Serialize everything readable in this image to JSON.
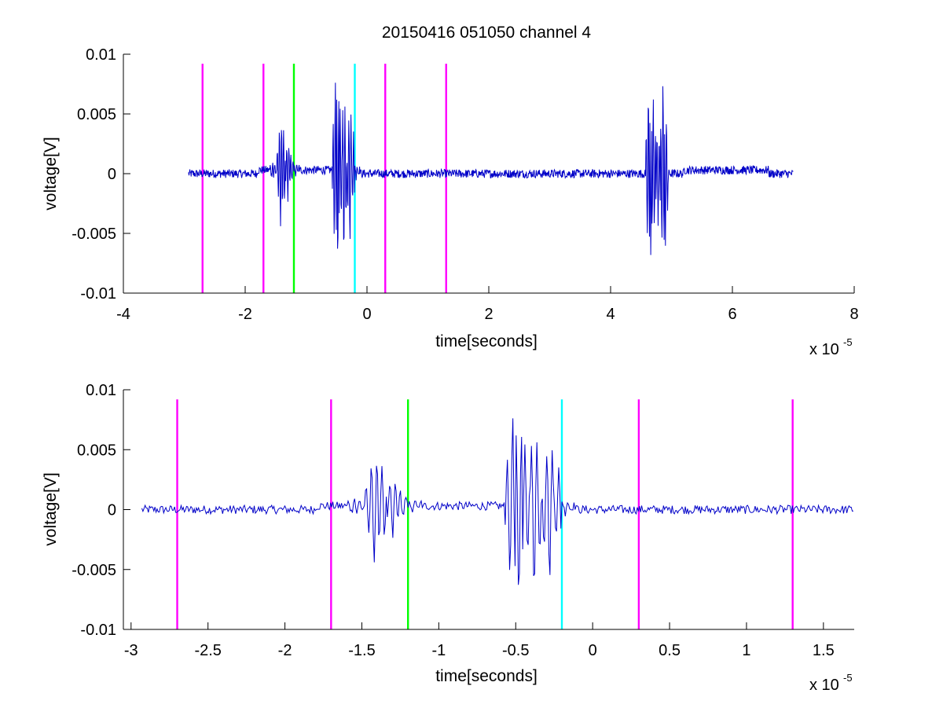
{
  "figure": {
    "title": "20150416 051050 channel 4"
  },
  "chart_data": [
    {
      "type": "line",
      "title": "20150416 051050 channel 4",
      "xlabel": "time[seconds]",
      "ylabel": "voltage[V]",
      "x_exponent_base": "x 10",
      "x_exponent_power": "-5",
      "xlim": [
        -4,
        8
      ],
      "ylim": [
        -0.01,
        0.01
      ],
      "xticks": [
        -4,
        -2,
        0,
        2,
        4,
        6,
        8
      ],
      "xtick_labels": [
        "-4",
        "-2",
        "0",
        "2",
        "4",
        "6",
        "8"
      ],
      "yticks": [
        -0.01,
        -0.005,
        0,
        0.005,
        0.01
      ],
      "ytick_labels": [
        "-0.01",
        "-0.005",
        "0",
        "0.005",
        "0.01"
      ],
      "grid": false,
      "series": [
        {
          "color": "#0000c8",
          "x_range": [
            -2.93,
            7.0
          ],
          "baseline_noise_amplitude": 0.0004,
          "bursts": [
            {
              "x": [
                -1.55,
                -1.42,
                -1.37,
                -1.3,
                -1.25,
                -1.15
              ],
              "y": [
                0.0008,
                -0.005,
                0.0038,
                -0.0028,
                0.0012,
                0.0006
              ]
            },
            {
              "x": [
                -0.52,
                -0.48,
                -0.44,
                -0.38,
                -0.28,
                -0.22,
                -0.18
              ],
              "y": [
                0.0083,
                -0.0089,
                0.0058,
                -0.0078,
                -0.0068,
                0.0032,
                -0.0006
              ]
            },
            {
              "x": [
                4.62,
                4.66,
                4.7,
                4.78,
                4.86,
                4.9
              ],
              "y": [
                0.0075,
                -0.0071,
                0.0068,
                -0.0045,
                0.0083,
                -0.0064
              ]
            }
          ],
          "offset_segments": [
            {
              "x": [
                -1.8,
                -0.1
              ],
              "y": 0.0003
            },
            {
              "x": [
                5.2,
                6.6
              ],
              "y": 0.0003
            }
          ]
        }
      ],
      "markers": [
        {
          "x": -2.7,
          "color": "#ff00ff"
        },
        {
          "x": -1.7,
          "color": "#ff00ff"
        },
        {
          "x": -1.2,
          "color": "#00ff00"
        },
        {
          "x": -0.2,
          "color": "#00ffff"
        },
        {
          "x": 0.3,
          "color": "#ff00ff"
        },
        {
          "x": 1.3,
          "color": "#ff00ff"
        }
      ],
      "marker_range": [
        -0.01,
        0.0092
      ]
    },
    {
      "type": "line",
      "title": "",
      "xlabel": "time[seconds]",
      "ylabel": "voltage[V]",
      "x_exponent_base": "x 10",
      "x_exponent_power": "-5",
      "xlim": [
        -3.05,
        1.7
      ],
      "ylim": [
        -0.01,
        0.01
      ],
      "xticks": [
        -3,
        -2.5,
        -2,
        -1.5,
        -1,
        -0.5,
        0,
        0.5,
        1,
        1.5
      ],
      "xtick_labels": [
        "-3",
        "-2.5",
        "-2",
        "-1.5",
        "-1",
        "-0.5",
        "0",
        "0.5",
        "1",
        "1.5"
      ],
      "yticks": [
        -0.01,
        -0.005,
        0,
        0.005,
        0.01
      ],
      "ytick_labels": [
        "-0.01",
        "-0.005",
        "0",
        "0.005",
        "0.01"
      ],
      "grid": false,
      "series": [
        {
          "color": "#0000c8",
          "x_range": [
            -2.93,
            1.7
          ],
          "baseline_noise_amplitude": 0.0004,
          "bursts": [
            {
              "x": [
                -1.55,
                -1.42,
                -1.37,
                -1.3,
                -1.25,
                -1.15
              ],
              "y": [
                0.0008,
                -0.005,
                0.0038,
                -0.0028,
                0.0012,
                0.0006
              ]
            },
            {
              "x": [
                -0.52,
                -0.48,
                -0.44,
                -0.38,
                -0.28,
                -0.22,
                -0.18
              ],
              "y": [
                0.0083,
                -0.0089,
                0.0058,
                -0.0078,
                -0.0068,
                0.0032,
                -0.0006
              ]
            }
          ],
          "offset_segments": [
            {
              "x": [
                -1.8,
                -0.1
              ],
              "y": 0.0003
            }
          ]
        }
      ],
      "markers": [
        {
          "x": -2.7,
          "color": "#ff00ff"
        },
        {
          "x": -1.7,
          "color": "#ff00ff"
        },
        {
          "x": -1.2,
          "color": "#00ff00"
        },
        {
          "x": -0.2,
          "color": "#00ffff"
        },
        {
          "x": 0.3,
          "color": "#ff00ff"
        },
        {
          "x": 1.3,
          "color": "#ff00ff"
        }
      ],
      "marker_range": [
        -0.01,
        0.0092
      ]
    }
  ]
}
